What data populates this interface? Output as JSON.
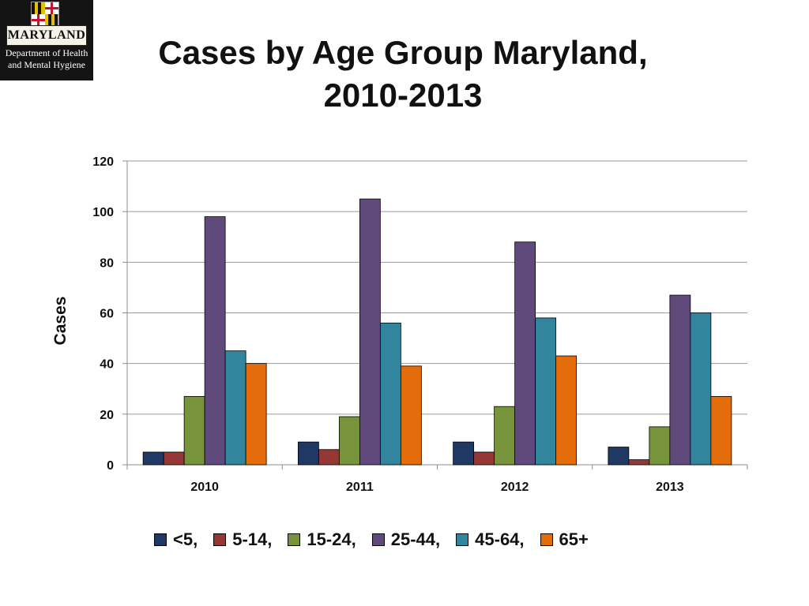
{
  "logo": {
    "name": "MARYLAND",
    "dept_line1": "Department of Health",
    "dept_line2": "and Mental Hygiene",
    "colors": [
      "#e0c000",
      "#111111",
      "#c8102e",
      "#ffffff"
    ]
  },
  "title": {
    "line1": "Cases by Age Group  Maryland,",
    "line2": "2010-2013"
  },
  "chart_data": {
    "type": "bar",
    "title": "Cases by Age Group  Maryland, 2010-2013",
    "xlabel": "",
    "ylabel": "Cases",
    "ylim": [
      0,
      120
    ],
    "yticks": [
      0,
      20,
      40,
      60,
      80,
      100,
      120
    ],
    "grid": true,
    "legend_position": "bottom",
    "categories": [
      "2010",
      "2011",
      "2012",
      "2013"
    ],
    "series": [
      {
        "name": "<5,",
        "color": "#1f3864",
        "values": [
          5,
          9,
          9,
          7
        ]
      },
      {
        "name": "5-14,",
        "color": "#953735",
        "values": [
          5,
          6,
          5,
          2
        ]
      },
      {
        "name": "15-24,",
        "color": "#77933c",
        "values": [
          27,
          19,
          23,
          15
        ]
      },
      {
        "name": "25-44,",
        "color": "#604a7b",
        "values": [
          98,
          105,
          88,
          67
        ]
      },
      {
        "name": "45-64,",
        "color": "#31859c",
        "values": [
          45,
          56,
          58,
          60
        ]
      },
      {
        "name": "65+",
        "color": "#e46c0a",
        "values": [
          40,
          39,
          43,
          27
        ]
      }
    ]
  }
}
